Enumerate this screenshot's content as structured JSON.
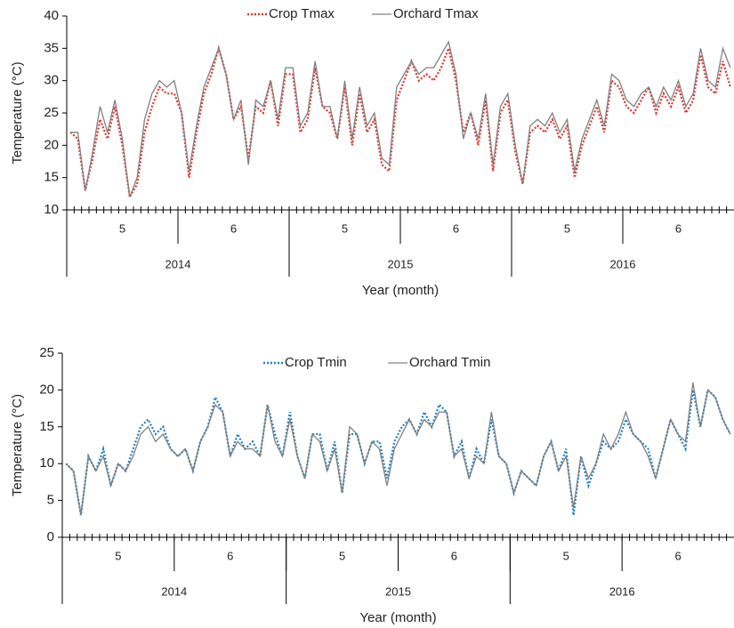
{
  "chart_data": [
    {
      "type": "line",
      "y_label": "Temperature (°C)",
      "x_label": "Year (month)",
      "ylim": [
        10,
        40
      ],
      "yticks": [
        10,
        15,
        20,
        25,
        30,
        35,
        40
      ],
      "months": [
        "5",
        "6",
        "5",
        "6",
        "5",
        "6"
      ],
      "years": [
        "2014",
        "2015",
        "2016"
      ],
      "categories": [
        null,
        null,
        null,
        null,
        null,
        null,
        null,
        null,
        null,
        null,
        null,
        null,
        null,
        null,
        null,
        null,
        null,
        null,
        null,
        null,
        null,
        null,
        null,
        null,
        null,
        null,
        null,
        null,
        null,
        null,
        null,
        null,
        null,
        null,
        null,
        null,
        null,
        null,
        null,
        null,
        null,
        null,
        null,
        null,
        null,
        null,
        null,
        null,
        null,
        null,
        null,
        null,
        null,
        null,
        null,
        null,
        null,
        null,
        null,
        null,
        null,
        null,
        null,
        null,
        null,
        null,
        null,
        null,
        null,
        null,
        null,
        null,
        null,
        null,
        null,
        null,
        null,
        null,
        null,
        null,
        null,
        null,
        null,
        null,
        null,
        null,
        null,
        null,
        null,
        null
      ],
      "series": [
        {
          "name": "Crop Tmax",
          "color": "#e8312a",
          "dash": true,
          "values": [
            22,
            21,
            13,
            18,
            24,
            21,
            26,
            20,
            12,
            14,
            22,
            26,
            29,
            28,
            28,
            25,
            15,
            22,
            28,
            31,
            35,
            31,
            24,
            26,
            18,
            26,
            25,
            30,
            23,
            31,
            31,
            22,
            24,
            32,
            26,
            25,
            21,
            29,
            20,
            28,
            22,
            24,
            17,
            16,
            27,
            30,
            33,
            30,
            31,
            30,
            32,
            35,
            30,
            22,
            25,
            20,
            27,
            16,
            25,
            27,
            19,
            14,
            22,
            23,
            22,
            24,
            21,
            23,
            15,
            20,
            23,
            26,
            22,
            30,
            29,
            26,
            25,
            27,
            29,
            25,
            28,
            26,
            29,
            25,
            27,
            34,
            29,
            28,
            33,
            29
          ]
        },
        {
          "name": "Orchard Tmax",
          "color": "#808080",
          "dash": false,
          "values": [
            22,
            22,
            13,
            19,
            26,
            22,
            27,
            21,
            12,
            15,
            24,
            28,
            30,
            29,
            30,
            25,
            16,
            23,
            29,
            32,
            35,
            31,
            24,
            27,
            17,
            27,
            26,
            30,
            24,
            32,
            32,
            23,
            25,
            33,
            26,
            26,
            21,
            30,
            21,
            29,
            23,
            25,
            18,
            17,
            29,
            31,
            33,
            31,
            32,
            32,
            34,
            36,
            31,
            21,
            25,
            21,
            28,
            17,
            26,
            28,
            20,
            14,
            23,
            24,
            23,
            25,
            22,
            24,
            16,
            21,
            24,
            27,
            23,
            31,
            30,
            27,
            26,
            28,
            29,
            26,
            29,
            27,
            30,
            26,
            28,
            35,
            30,
            29,
            35,
            32
          ]
        }
      ]
    },
    {
      "type": "line",
      "y_label": "Temperature (°C)",
      "x_label": "Year (month)",
      "ylim": [
        0,
        25
      ],
      "yticks": [
        0,
        5,
        10,
        15,
        20,
        25
      ],
      "months": [
        "5",
        "6",
        "5",
        "6",
        "5",
        "6"
      ],
      "years": [
        "2014",
        "2015",
        "2016"
      ],
      "categories": [
        null,
        null,
        null,
        null,
        null,
        null,
        null,
        null,
        null,
        null,
        null,
        null,
        null,
        null,
        null,
        null,
        null,
        null,
        null,
        null,
        null,
        null,
        null,
        null,
        null,
        null,
        null,
        null,
        null,
        null,
        null,
        null,
        null,
        null,
        null,
        null,
        null,
        null,
        null,
        null,
        null,
        null,
        null,
        null,
        null,
        null,
        null,
        null,
        null,
        null,
        null,
        null,
        null,
        null,
        null,
        null,
        null,
        null,
        null,
        null,
        null,
        null,
        null,
        null,
        null,
        null,
        null,
        null,
        null,
        null,
        null,
        null,
        null,
        null,
        null,
        null,
        null,
        null,
        null,
        null,
        null,
        null,
        null,
        null,
        null,
        null,
        null,
        null,
        null,
        null
      ],
      "series": [
        {
          "name": "Crop Tmin",
          "color": "#1f7fc4",
          "dash": true,
          "values": [
            10,
            9,
            3,
            11,
            9,
            12,
            7,
            10,
            9,
            12,
            15,
            16,
            14,
            15,
            12,
            11,
            12,
            9,
            13,
            15,
            19,
            17,
            11,
            14,
            12,
            13,
            11,
            18,
            14,
            11,
            17,
            11,
            8,
            14,
            14,
            9,
            13,
            6,
            14,
            14,
            10,
            13,
            13,
            8,
            13,
            15,
            16,
            14,
            17,
            15,
            18,
            17,
            11,
            13,
            8,
            12,
            10,
            16,
            11,
            10,
            6,
            9,
            8,
            7,
            11,
            13,
            9,
            12,
            3,
            11,
            7,
            10,
            13,
            12,
            13,
            16,
            14,
            13,
            12,
            8,
            12,
            16,
            14,
            12,
            20,
            15,
            20,
            19,
            16,
            14
          ]
        },
        {
          "name": "Orchard Tmin",
          "color": "#808080",
          "dash": false,
          "values": [
            10,
            9,
            3,
            11,
            9,
            11,
            7,
            10,
            9,
            11,
            14,
            15,
            13,
            14,
            12,
            11,
            12,
            9,
            13,
            15,
            18,
            17,
            11,
            13,
            12,
            12,
            11,
            18,
            13,
            11,
            16,
            11,
            8,
            14,
            13,
            9,
            12,
            6,
            15,
            14,
            10,
            13,
            12,
            7,
            12,
            14,
            16,
            14,
            16,
            15,
            17,
            17,
            11,
            12,
            8,
            11,
            10,
            17,
            11,
            10,
            6,
            9,
            8,
            7,
            11,
            13,
            9,
            11,
            4,
            11,
            8,
            10,
            14,
            12,
            14,
            17,
            14,
            13,
            11,
            8,
            12,
            16,
            14,
            13,
            21,
            15,
            20,
            19,
            16,
            14
          ]
        }
      ]
    }
  ]
}
